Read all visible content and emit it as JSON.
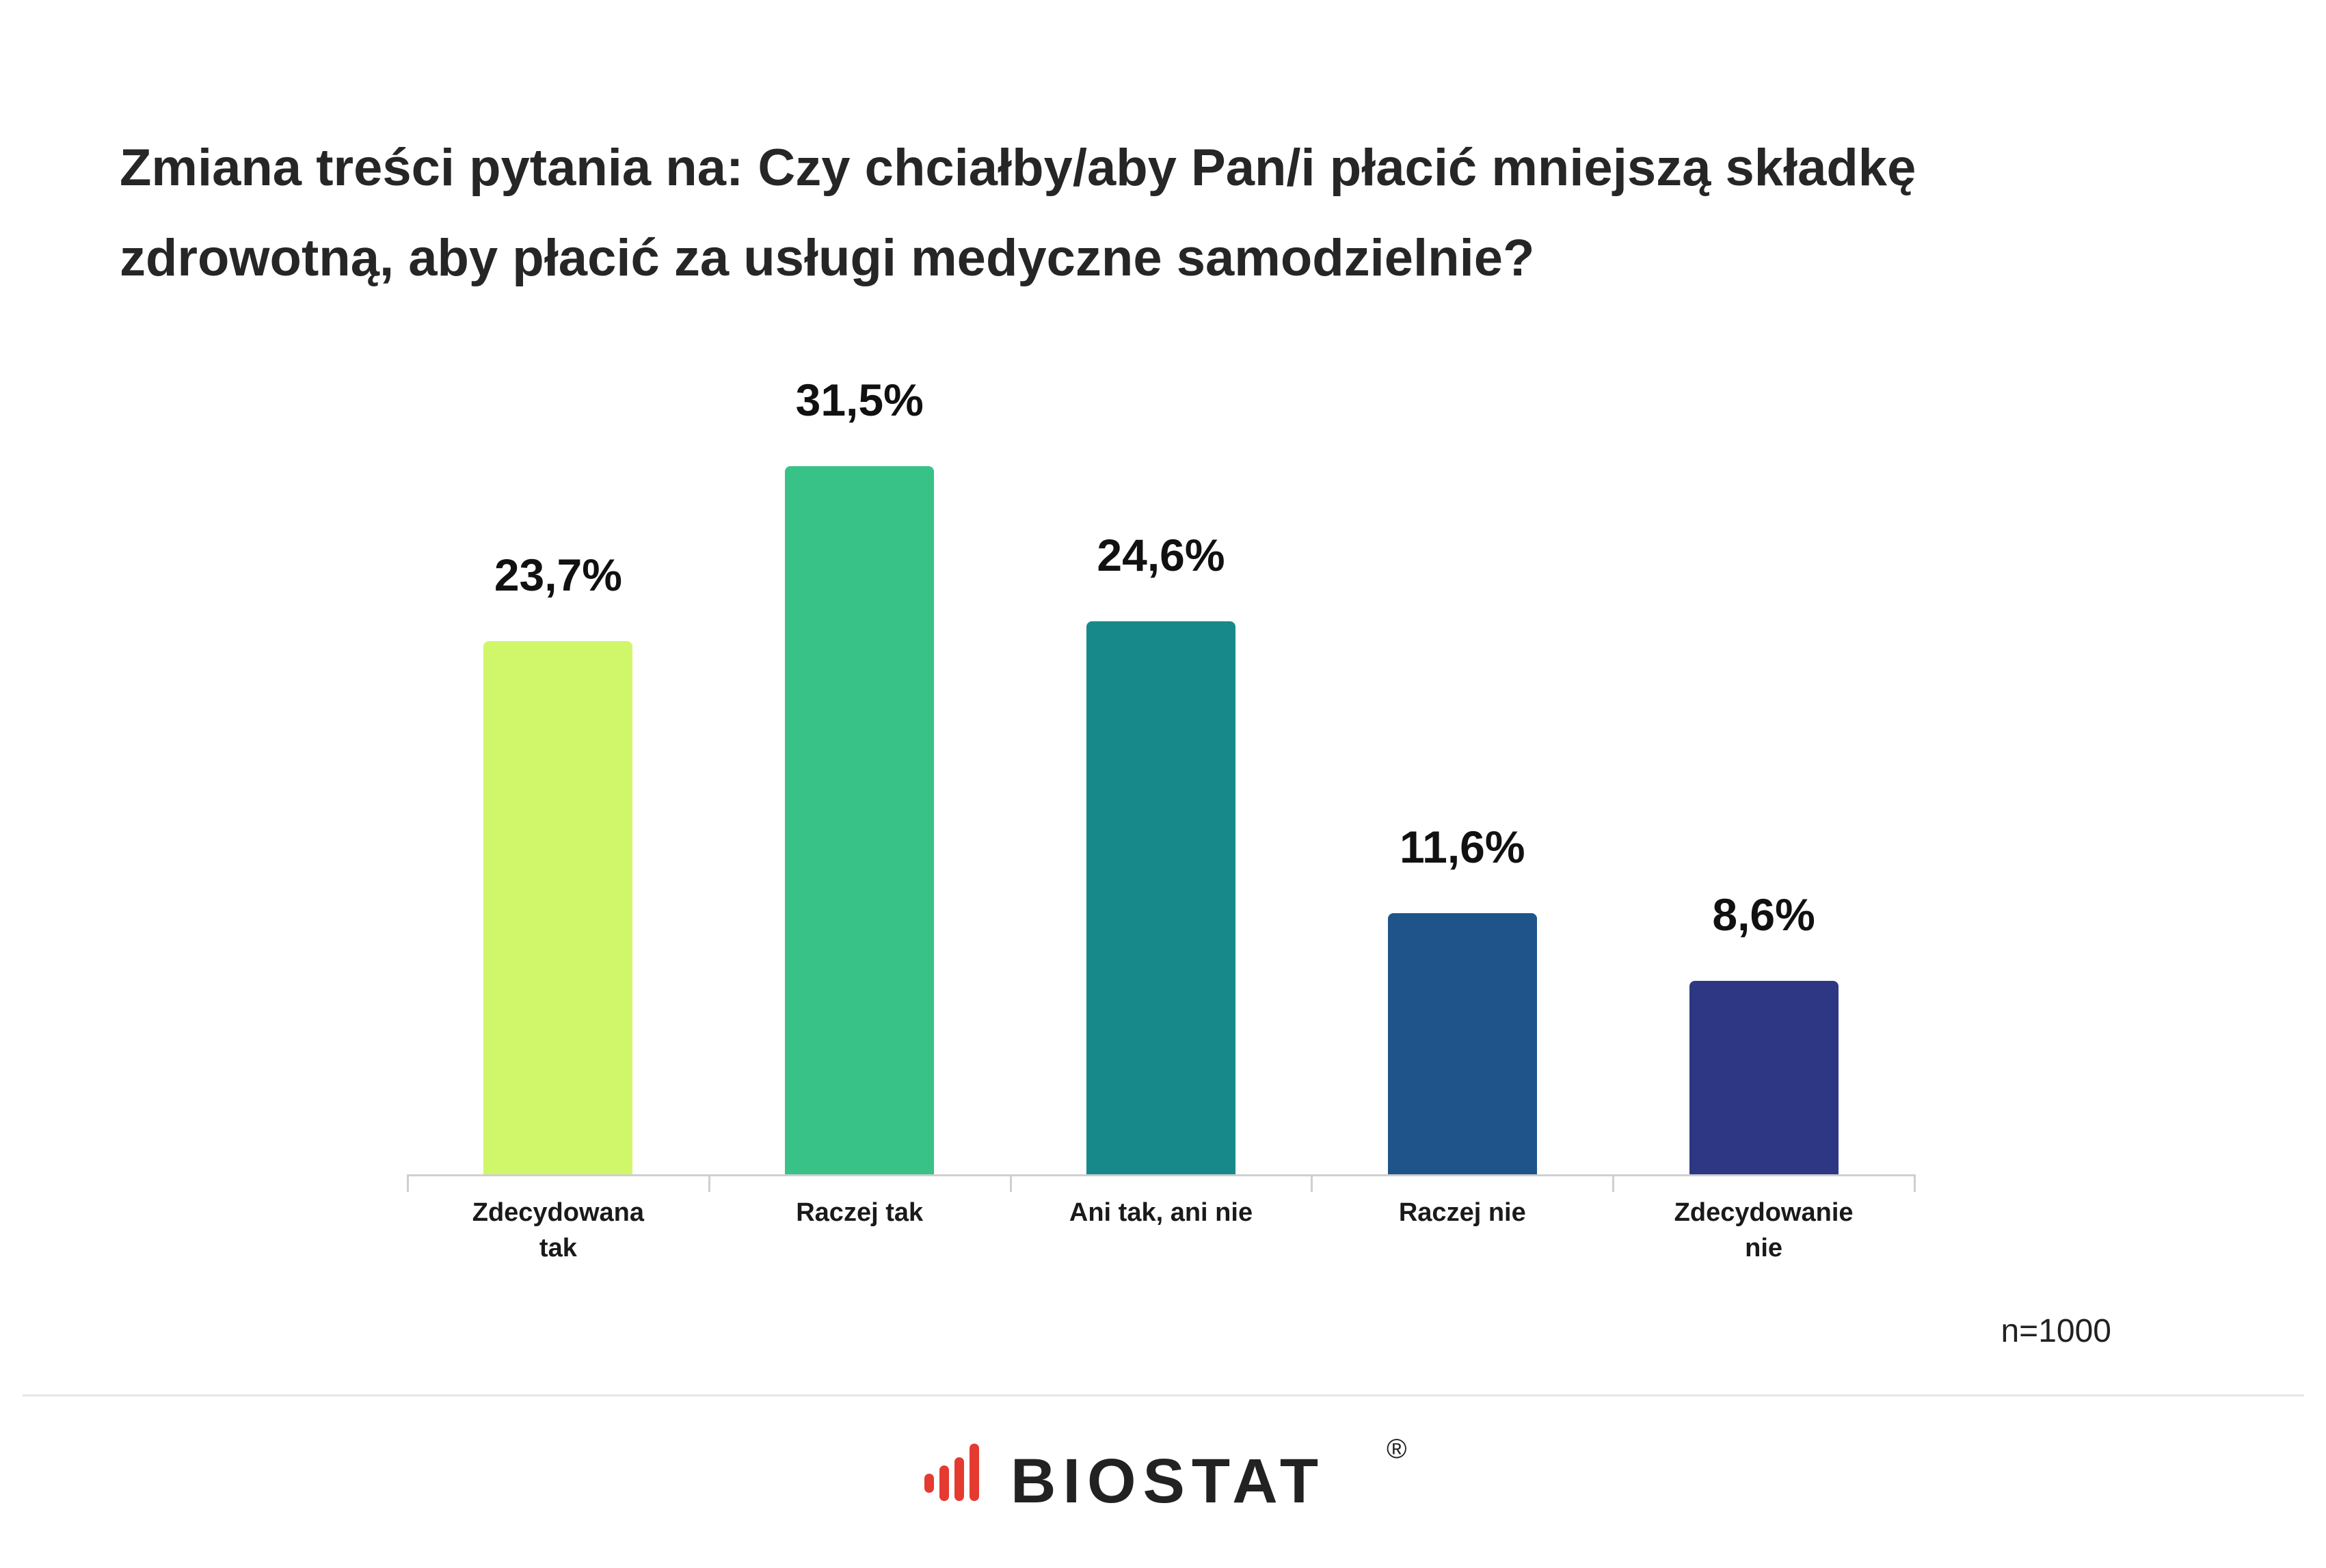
{
  "chart_data": {
    "type": "bar",
    "title": "Zmiana treści pytania na: Czy chciałby/aby Pan/i płacić mniejszą składkę zdrowotną, aby płacić za usługi medyczne samodzielnie?",
    "categories": [
      "Zdecydowana tak",
      "Raczej tak",
      "Ani tak, ani nie",
      "Raczej nie",
      "Zdecydowanie nie"
    ],
    "values": [
      23.7,
      31.5,
      24.6,
      11.6,
      8.6
    ],
    "value_labels": [
      "23,7%",
      "31,5%",
      "24,6%",
      "11,6%",
      "8,6%"
    ],
    "colors": [
      "#d0f76a",
      "#38c288",
      "#17898a",
      "#1e5489",
      "#2d3784"
    ]
  },
  "footer": {
    "note": "n=1000",
    "logo": "BIOSTAT",
    "registered": "®"
  }
}
